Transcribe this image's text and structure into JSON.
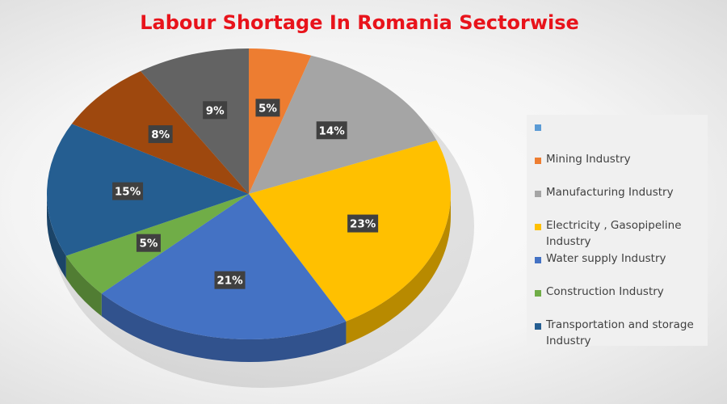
{
  "chart_data": {
    "type": "pie",
    "title": "Labour Shortage In Romania Sectorwise",
    "slices": [
      {
        "label": "Mining Industry",
        "value": 5,
        "display": "5%",
        "color": "#ED7D31"
      },
      {
        "label": "Manufacturing Industry",
        "value": 14,
        "display": "14%",
        "color": "#A5A5A5"
      },
      {
        "label": "Electricity , Gasopipeline Industry",
        "value": 23,
        "display": "23%",
        "color": "#FFC000"
      },
      {
        "label": "Water supply Industry",
        "value": 21,
        "display": "21%",
        "color": "#4472C4"
      },
      {
        "label": "Construction Industry",
        "value": 5,
        "display": "5%",
        "color": "#70AD47"
      },
      {
        "label": "Transportation and storage Industry",
        "value": 15,
        "display": "15%",
        "color": "#255E91"
      },
      {
        "label": "",
        "value": 8,
        "display": "8%",
        "color": "#9E480E"
      },
      {
        "label": "",
        "value": 9,
        "display": "9%",
        "color": "#636363"
      }
    ],
    "legend": {
      "placement": "right",
      "entries": [
        {
          "label": "",
          "color": "#5B9BD5"
        },
        {
          "label": "Mining Industry",
          "color": "#ED7D31"
        },
        {
          "label": "Manufacturing Industry",
          "color": "#A5A5A5"
        },
        {
          "label": "Electricity , Gasopipeline Industry",
          "color": "#FFC000"
        },
        {
          "label": "Water supply Industry",
          "color": "#4472C4"
        },
        {
          "label": "Construction Industry",
          "color": "#70AD47"
        },
        {
          "label": "Transportation and storage Industry",
          "color": "#255E91"
        }
      ]
    }
  }
}
